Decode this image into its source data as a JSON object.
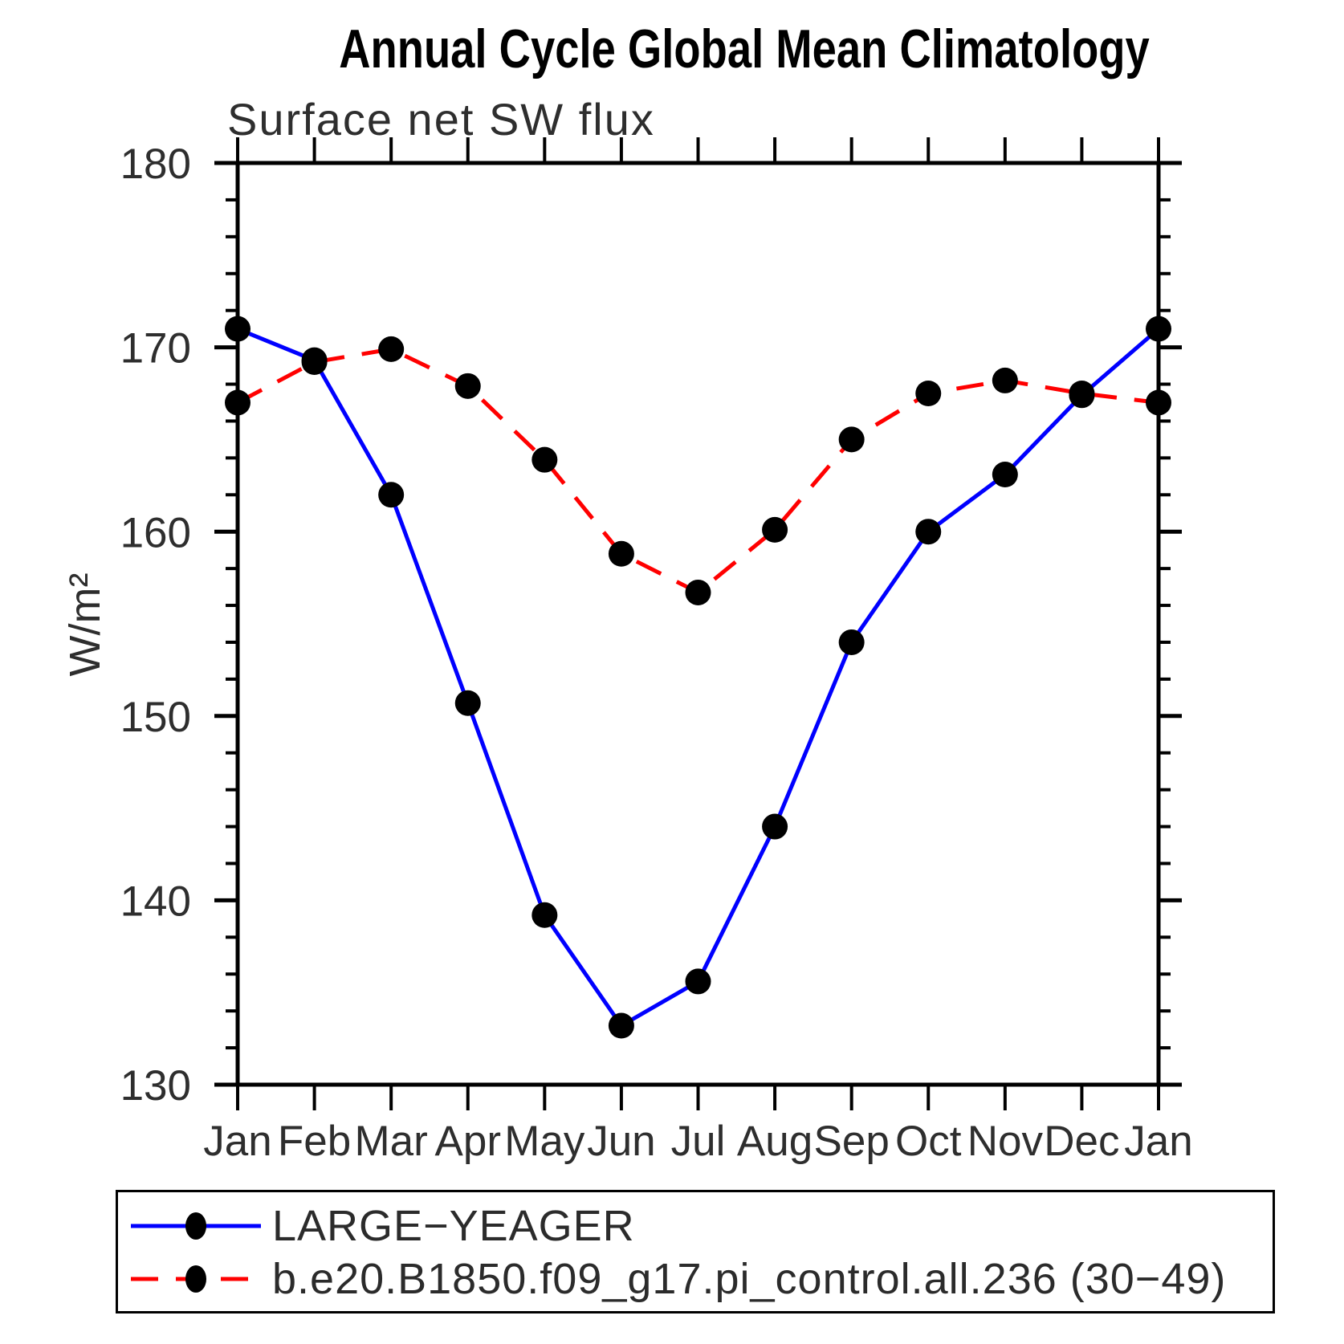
{
  "chart_data": {
    "type": "line",
    "title": "Annual Cycle Global Mean Climatology",
    "subtitle": "Surface net SW flux",
    "ylabel": "W/m²",
    "xlabel": "",
    "x_categories": [
      "Jan",
      "Feb",
      "Mar",
      "Apr",
      "May",
      "Jun",
      "Jul",
      "Aug",
      "Sep",
      "Oct",
      "Nov",
      "Dec",
      "Jan"
    ],
    "ylim": [
      130,
      180
    ],
    "y_major_ticks": [
      130,
      140,
      150,
      160,
      170,
      180
    ],
    "y_minor_step": 2,
    "grid": false,
    "legend_position": "bottom-left-box",
    "series": [
      {
        "name": "LARGE−YEAGER",
        "color": "#0000ff",
        "line_style": "solid",
        "marker": "filled-circle",
        "marker_color": "#000000",
        "values": [
          171.0,
          169.3,
          162.0,
          150.7,
          139.2,
          133.2,
          135.6,
          144.0,
          154.0,
          160.0,
          163.1,
          167.4,
          171.0
        ]
      },
      {
        "name": "b.e20.B1850.f09_g17.pi_control.all.236 (30−49)",
        "color": "#ff0000",
        "line_style": "dashed",
        "marker": "filled-circle",
        "marker_color": "#000000",
        "values": [
          167.0,
          169.2,
          169.9,
          167.9,
          163.9,
          158.8,
          156.7,
          160.1,
          165.0,
          167.5,
          168.2,
          167.5,
          167.0
        ]
      }
    ]
  }
}
